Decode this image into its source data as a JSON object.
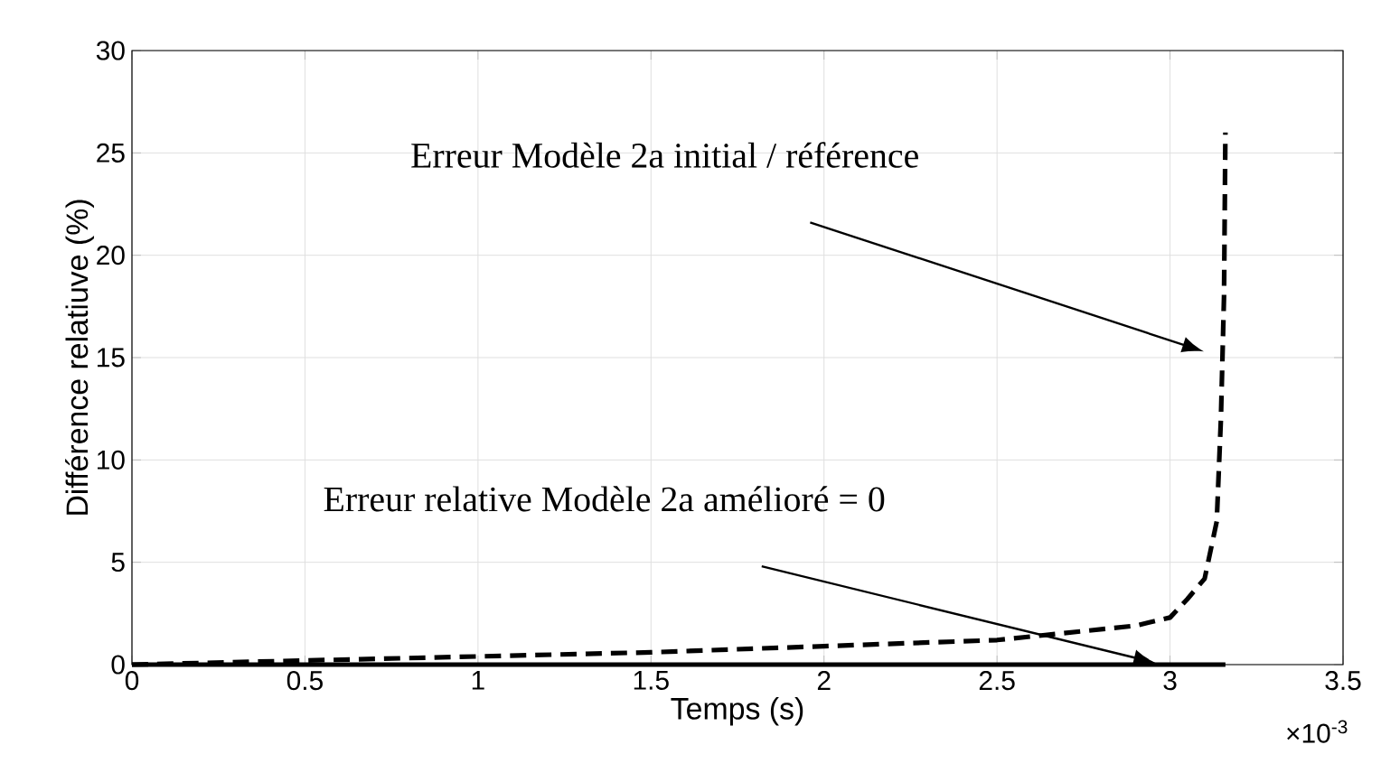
{
  "chart_data": {
    "type": "line",
    "xlabel": "Temps (s)",
    "ylabel": "Différence relatiuve (%)",
    "xlim": [
      0,
      3.5
    ],
    "ylim": [
      0,
      30
    ],
    "xticks": [
      0,
      0.5,
      1,
      1.5,
      2,
      2.5,
      3,
      3.5
    ],
    "yticks": [
      0,
      5,
      10,
      15,
      20,
      25,
      30
    ],
    "grid": true,
    "marker": "none",
    "series": [
      {
        "color": "#000000",
        "line_style": "dashed",
        "x": [
          0,
          0.5,
          1,
          1.5,
          2,
          2.5,
          2.9,
          3,
          3.05,
          3.1,
          3.135,
          3.147,
          3.156,
          3.16
        ],
        "values": [
          0,
          0.2,
          0.4,
          0.6,
          0.9,
          1.2,
          1.9,
          2.3,
          3.2,
          4.2,
          7,
          12,
          18,
          26
        ]
      },
      {
        "color": "#000000",
        "line_style": "solid",
        "x": [
          0,
          3.16
        ],
        "values": [
          0,
          0
        ]
      }
    ],
    "annotations": [
      "Erreur Modèle 2a initial / référence",
      "Erreur relative Modèle 2a amélioré = 0",
      "×10$^{-3}$"
    ]
  }
}
